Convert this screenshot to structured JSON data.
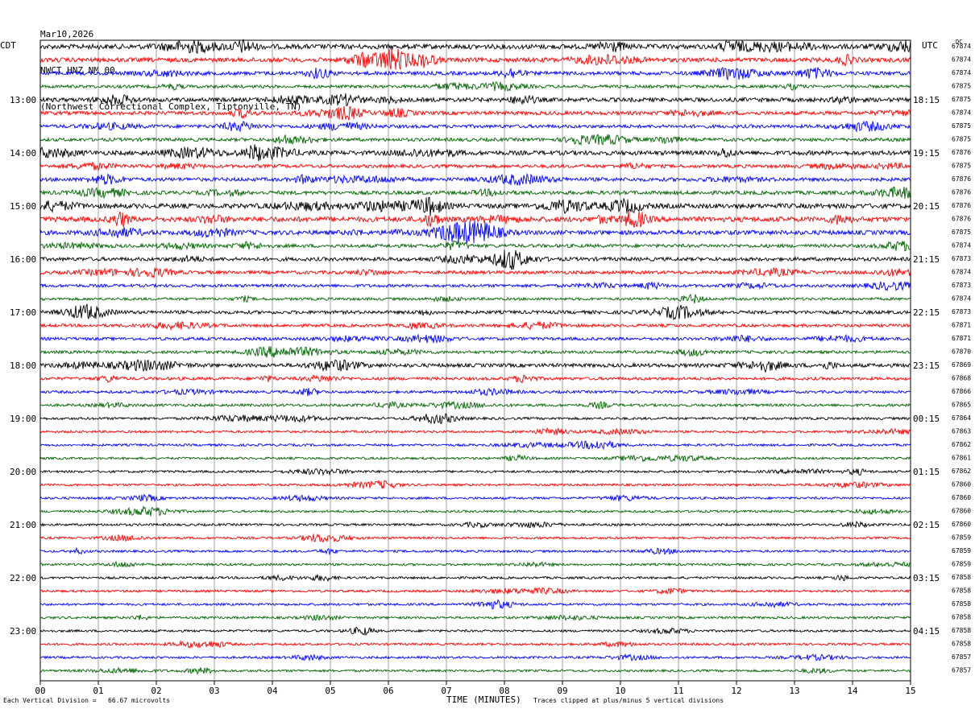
{
  "header": {
    "date": "Mar10,2026",
    "station": "NWCT HNZ NM 00",
    "location": "(Northwest Correctional Complex, Tiptonville, TN)"
  },
  "left_zone": "CDT",
  "right_zone": "UTC",
  "dc_label": "DC",
  "footer": {
    "left": "Each Vertical Division =   66.67 microvolts",
    "xlabel": "TIME (MINUTES)",
    "right": "Traces clipped at plus/minus 5 vertical divisions"
  },
  "chart_data": {
    "type": "line",
    "title": "",
    "xlabel": "TIME (MINUTES)",
    "xlim": [
      0,
      15
    ],
    "x_ticks": [
      "00",
      "01",
      "02",
      "03",
      "04",
      "05",
      "06",
      "07",
      "08",
      "09",
      "10",
      "11",
      "12",
      "13",
      "14",
      "15"
    ],
    "trace_colors": [
      "#000000",
      "#ff0000",
      "#0000ff",
      "#006400"
    ],
    "left_hour_labels": [
      "13:00",
      "14:00",
      "15:00",
      "16:00",
      "17:00",
      "18:00",
      "19:00",
      "20:00",
      "21:00",
      "22:00",
      "23:00"
    ],
    "right_hour_labels": [
      "18:15",
      "19:15",
      "20:15",
      "21:15",
      "22:15",
      "23:15",
      "00:15",
      "01:15",
      "02:15",
      "03:15",
      "04:15"
    ],
    "trace_dc_offsets": [
      "67874",
      "67874",
      "67874",
      "67875",
      "67875",
      "67874",
      "67875",
      "67875",
      "67876",
      "67875",
      "67876",
      "67876",
      "67876",
      "67876",
      "67875",
      "67874",
      "67873",
      "67874",
      "67873",
      "67874",
      "67873",
      "67871",
      "67871",
      "67870",
      "67869",
      "67868",
      "67866",
      "67865",
      "67864",
      "67863",
      "67862",
      "67861",
      "67862",
      "67860",
      "67860",
      "67860",
      "67860",
      "67859",
      "67859",
      "67859",
      "67858",
      "67858",
      "67858",
      "67858",
      "67858",
      "67858",
      "67857",
      "67857"
    ],
    "trace_activity": [
      0.9,
      0.8,
      0.6,
      0.4,
      0.7,
      0.6,
      0.5,
      0.5,
      0.8,
      0.5,
      0.6,
      0.6,
      0.9,
      1.0,
      0.8,
      0.5,
      0.6,
      0.5,
      0.4,
      0.3,
      0.5,
      0.4,
      0.4,
      0.4,
      0.6,
      0.4,
      0.3,
      0.3,
      0.25,
      0.2,
      0.2,
      0.2,
      0.2,
      0.2,
      0.2,
      0.2,
      0.2,
      0.2,
      0.2,
      0.2,
      0.2,
      0.2,
      0.2,
      0.2,
      0.2,
      0.2,
      0.2,
      0.2
    ]
  }
}
